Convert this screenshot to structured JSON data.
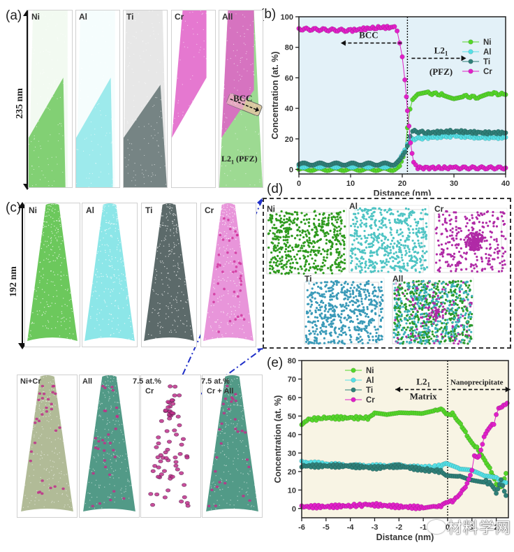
{
  "panels": {
    "a": {
      "label": "(a)",
      "scale_label": "235 nm",
      "columns": [
        {
          "element": "Ni",
          "color": "#5cc24a"
        },
        {
          "element": "Al",
          "color": "#7fe3e6"
        },
        {
          "element": "Ti",
          "color": "#5a6b6b"
        },
        {
          "element": "Cr",
          "color": "#e060c8"
        },
        {
          "element": "All",
          "color": "#5cc24a"
        }
      ],
      "annotations": {
        "bcc": "BCC",
        "l21": "L2",
        "l21_sub": "1",
        "pfz": " (PFZ)"
      }
    },
    "b": {
      "label": "(b)"
    },
    "c": {
      "label": "(c)",
      "scale_label": "192 nm",
      "top_columns": [
        {
          "element": "Ni",
          "color": "#5cc24a"
        },
        {
          "element": "Al",
          "color": "#7fe3e6"
        },
        {
          "element": "Ti",
          "color": "#4a5a5a"
        },
        {
          "element": "Cr",
          "color": "#e58ad6"
        }
      ],
      "bottom_columns": [
        {
          "element": "Ni+Cr",
          "color": "#a8b48c"
        },
        {
          "element": "All",
          "color": "#3f8f7a"
        },
        {
          "element": "7.5 at.%",
          "sub": "Cr",
          "color": "#ffffff"
        },
        {
          "element": "7.5 at.%",
          "sub": "Cr + All",
          "color": "#3f8f7a"
        }
      ]
    },
    "d": {
      "label": "(d)",
      "boxes": [
        {
          "element": "Ni",
          "color": "#2e9a1e",
          "clustered": false
        },
        {
          "element": "Al",
          "color": "#4fc4c4",
          "clustered": false
        },
        {
          "element": "Cr",
          "color": "#b02aa6",
          "clustered": true
        },
        {
          "element": "Ti",
          "color": "#3a9ab8",
          "clustered": false
        },
        {
          "element": "All",
          "color": "#3a9ab8",
          "clustered": true
        }
      ]
    },
    "e": {
      "label": "(e)"
    }
  },
  "watermark": "材料学网",
  "chart_data": [
    {
      "id": "b",
      "type": "line",
      "title": "",
      "xlabel": "Distance (nm)",
      "ylabel": "Concentration (at. %)",
      "xlim": [
        0,
        40
      ],
      "ylim": [
        -3,
        100
      ],
      "xticks": [
        0,
        10,
        20,
        30,
        40
      ],
      "yticks": [
        0,
        20,
        40,
        60,
        80,
        100
      ],
      "interface_x": 21,
      "legend": "top-right",
      "background": "#e3f1f8",
      "annotations": [
        {
          "text": "BCC",
          "x": 13.5,
          "y": 86,
          "arrow": "left"
        },
        {
          "text": "L2",
          "sub": "1",
          "x": 27.5,
          "y": 76,
          "arrow": "right"
        },
        {
          "text": "(PFZ)",
          "x": 27.5,
          "y": 62
        }
      ],
      "series": [
        {
          "name": "Ni",
          "color": "#55d62a",
          "segments": [
            [
              0,
              0
            ],
            [
              18.5,
              0
            ],
            [
              19.5,
              3
            ],
            [
              20.5,
              12
            ],
            [
              21,
              28
            ],
            [
              21.5,
              40
            ],
            [
              22,
              46
            ],
            [
              23,
              49
            ],
            [
              25,
              50
            ],
            [
              28,
              49
            ],
            [
              30,
              47
            ],
            [
              32,
              48
            ],
            [
              35,
              47
            ],
            [
              37,
              50
            ],
            [
              40,
              49
            ]
          ]
        },
        {
          "name": "Al",
          "color": "#55e0e6",
          "segments": [
            [
              0,
              2
            ],
            [
              18.5,
              2
            ],
            [
              19.5,
              6
            ],
            [
              20.5,
              12
            ],
            [
              21,
              16
            ],
            [
              21.5,
              19
            ],
            [
              22,
              20
            ],
            [
              25,
              21
            ],
            [
              30,
              22
            ],
            [
              35,
              21
            ],
            [
              40,
              21
            ]
          ]
        },
        {
          "name": "Ti",
          "color": "#2f7f78",
          "segments": [
            [
              0,
              3.5
            ],
            [
              18.5,
              3.5
            ],
            [
              19.5,
              7
            ],
            [
              20.5,
              12
            ],
            [
              21,
              16
            ],
            [
              21.5,
              22
            ],
            [
              22,
              25
            ],
            [
              25,
              24
            ],
            [
              30,
              25
            ],
            [
              35,
              24
            ],
            [
              40,
              24
            ]
          ]
        },
        {
          "name": "Cr",
          "color": "#e020c8",
          "segments": [
            [
              0,
              92
            ],
            [
              10,
              91
            ],
            [
              15,
              93
            ],
            [
              18.5,
              93
            ],
            [
              19,
              90
            ],
            [
              19.5,
              82
            ],
            [
              20,
              73
            ],
            [
              20.5,
              58
            ],
            [
              20.8,
              48
            ],
            [
              21,
              38
            ],
            [
              21.3,
              29
            ],
            [
              21.6,
              18
            ],
            [
              21.9,
              10
            ],
            [
              22.2,
              4
            ],
            [
              23,
              1
            ],
            [
              30,
              1
            ],
            [
              40,
              1
            ]
          ]
        }
      ]
    },
    {
      "id": "e",
      "type": "line",
      "title": "",
      "xlabel": "Distance (nm)",
      "ylabel": "Concentration (at. %)",
      "xlim": [
        -6,
        2.5
      ],
      "ylim": [
        -5,
        80
      ],
      "xticks": [
        -6,
        -5,
        -4,
        -3,
        -2,
        -1,
        0,
        1,
        2
      ],
      "yticks": [
        0,
        10,
        20,
        30,
        40,
        50,
        60,
        70,
        80
      ],
      "interface_x": 0,
      "legend": "top-left",
      "background": "#f8f4e4",
      "annotations": [
        {
          "text": "L2",
          "sub": "1",
          "x": -1.0,
          "y": 67,
          "arrow": "left"
        },
        {
          "text": "Matrix",
          "x": -1.0,
          "y": 59
        },
        {
          "text": "Nanoprecipitate",
          "x": 1.2,
          "y": 67,
          "arrow": "right"
        }
      ],
      "series": [
        {
          "name": "Ni",
          "color": "#55d62a",
          "segments": [
            [
              -6,
              46
            ],
            [
              -5.8,
              48
            ],
            [
              -5,
              49
            ],
            [
              -4,
              49
            ],
            [
              -3.2,
              49
            ],
            [
              -3,
              51
            ],
            [
              -2.5,
              50
            ],
            [
              -2,
              51
            ],
            [
              -1.5,
              51
            ],
            [
              -1,
              51
            ],
            [
              -0.5,
              53
            ],
            [
              -0.2,
              54
            ],
            [
              0,
              51
            ],
            [
              0.2,
              51
            ],
            [
              0.4,
              47
            ],
            [
              0.6,
              44
            ],
            [
              0.8,
              40
            ],
            [
              1.0,
              36
            ],
            [
              1.2,
              33
            ],
            [
              1.4,
              28
            ],
            [
              1.6,
              24
            ],
            [
              1.8,
              20
            ],
            [
              2.0,
              14
            ],
            [
              2.2,
              12
            ],
            [
              2.4,
              19
            ]
          ]
        },
        {
          "name": "Al",
          "color": "#55e0e6",
          "segments": [
            [
              -6,
              25
            ],
            [
              -5,
              24
            ],
            [
              -4,
              23
            ],
            [
              -3,
              23
            ],
            [
              -2,
              23
            ],
            [
              -1,
              22
            ],
            [
              -0.2,
              23
            ],
            [
              0,
              24
            ],
            [
              0.5,
              21
            ],
            [
              1.0,
              20
            ],
            [
              1.5,
              17
            ],
            [
              2.0,
              16
            ],
            [
              2.4,
              14
            ]
          ]
        },
        {
          "name": "Ti",
          "color": "#2f7f78",
          "segments": [
            [
              -6,
              23
            ],
            [
              -5,
              23
            ],
            [
              -4,
              23
            ],
            [
              -3,
              22
            ],
            [
              -2,
              23
            ],
            [
              -1,
              21
            ],
            [
              -0.2,
              20
            ],
            [
              0,
              18
            ],
            [
              0.5,
              18
            ],
            [
              1.0,
              16
            ],
            [
              1.5,
              15
            ],
            [
              1.8,
              13
            ],
            [
              2.0,
              9
            ],
            [
              2.2,
              16
            ],
            [
              2.4,
              7
            ]
          ]
        },
        {
          "name": "Cr",
          "color": "#e020c8",
          "segments": [
            [
              -6,
              1
            ],
            [
              -5,
              1
            ],
            [
              -4,
              1.5
            ],
            [
              -3.3,
              2
            ],
            [
              -3,
              2
            ],
            [
              -2,
              1
            ],
            [
              -1,
              0.5
            ],
            [
              -0.5,
              1
            ],
            [
              -0.2,
              1.5
            ],
            [
              0,
              3
            ],
            [
              0.2,
              4
            ],
            [
              0.4,
              7
            ],
            [
              0.6,
              10
            ],
            [
              0.8,
              13
            ],
            [
              1.0,
              20
            ],
            [
              1.1,
              29
            ],
            [
              1.3,
              28
            ],
            [
              1.5,
              38
            ],
            [
              1.7,
              43
            ],
            [
              1.9,
              46
            ],
            [
              2.0,
              50
            ],
            [
              2.1,
              55
            ],
            [
              2.3,
              56
            ],
            [
              2.45,
              57
            ]
          ]
        }
      ]
    }
  ]
}
